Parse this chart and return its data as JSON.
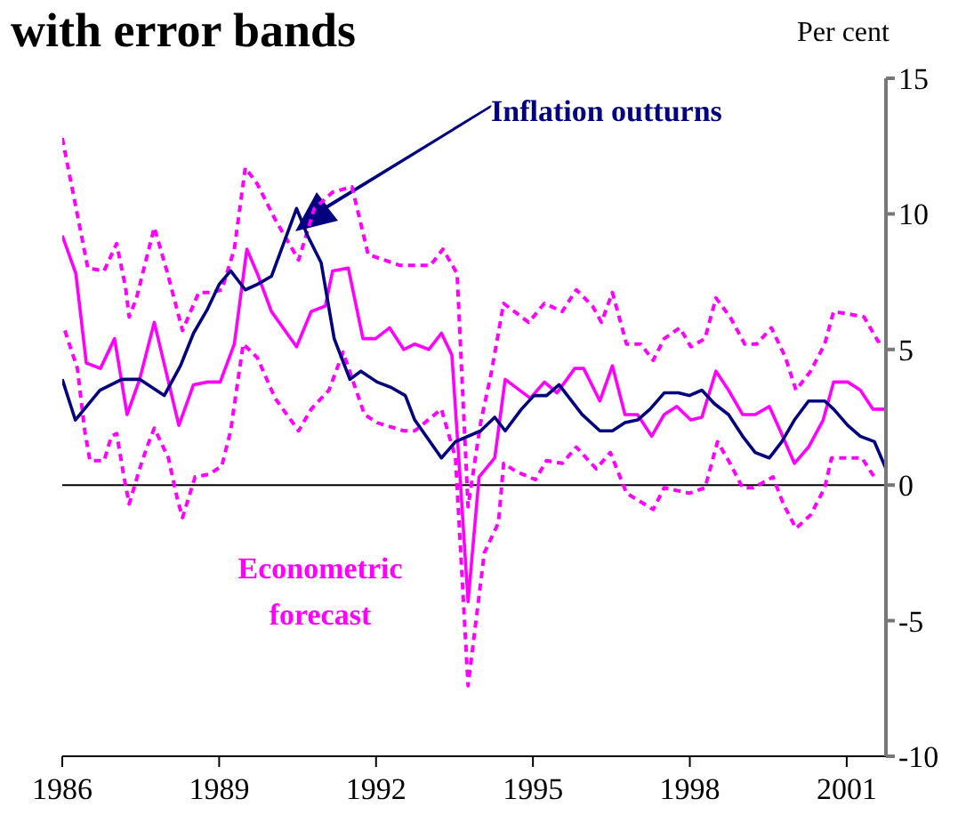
{
  "chart_data": {
    "type": "line",
    "title": "with error bands",
    "ylabel": "Per cent",
    "xlim": [
      1986,
      2001.75
    ],
    "xticks": [
      1986,
      1989,
      1992,
      1995,
      1998,
      2001
    ],
    "ylim": [
      -10,
      15
    ],
    "yticks": [
      -10,
      -5,
      0,
      5,
      10,
      15
    ],
    "grid": false,
    "legend": false,
    "marker": "none",
    "ref_lines": [
      {
        "axis": "y",
        "value": 0,
        "color": "#000000"
      }
    ],
    "series": [
      {
        "color": "#ff00ff",
        "line_style": "dashed",
        "x": [
          1986.0,
          1986.49,
          1986.8,
          1987.04,
          1987.21,
          1987.28,
          1987.42,
          1987.76,
          1988.0,
          1988.3,
          1988.61,
          1988.85,
          1989.05,
          1989.29,
          1989.5,
          1989.73,
          1990.07,
          1990.52,
          1990.82,
          1991.17,
          1991.54,
          1991.85,
          1992.46,
          1993.04,
          1993.28,
          1993.55,
          1993.76,
          1994.0,
          1994.2,
          1994.44,
          1994.92,
          1995.22,
          1995.56,
          1995.83,
          1996.14,
          1996.31,
          1996.52,
          1996.79,
          1997.06,
          1997.3,
          1997.51,
          1997.81,
          1998.02,
          1998.29,
          1998.5,
          1998.77,
          1999.05,
          1999.28,
          1999.56,
          1999.83,
          2000.03,
          2000.31,
          2000.58,
          2000.75,
          2001.06,
          2001.33,
          2001.6,
          2001.75
        ],
        "values": [
          12.8,
          8.0,
          7.9,
          8.9,
          7.3,
          6.2,
          6.9,
          9.5,
          7.9,
          5.7,
          7.1,
          7.1,
          7.2,
          8.7,
          11.7,
          11.1,
          9.8,
          8.3,
          10.2,
          10.8,
          11.0,
          8.5,
          8.1,
          8.1,
          8.7,
          7.8,
          -0.8,
          2.3,
          4.1,
          6.7,
          6.0,
          6.7,
          6.4,
          7.2,
          6.6,
          6.0,
          7.1,
          5.2,
          5.2,
          4.6,
          5.4,
          5.8,
          5.1,
          5.4,
          6.9,
          6.2,
          5.2,
          5.2,
          5.8,
          4.7,
          3.5,
          4.2,
          5.2,
          6.4,
          6.3,
          6.2,
          5.3,
          5.4
        ]
      },
      {
        "color": "#ff00ff",
        "line_style": "dashed",
        "x": [
          1986.05,
          1986.29,
          1986.43,
          1986.53,
          1986.8,
          1986.94,
          1987.04,
          1987.18,
          1987.28,
          1987.48,
          1987.62,
          1987.76,
          1988.03,
          1988.2,
          1988.3,
          1988.54,
          1988.81,
          1989.05,
          1989.22,
          1989.46,
          1989.73,
          1990.07,
          1990.52,
          1990.76,
          1991.1,
          1991.37,
          1991.78,
          1992.02,
          1992.53,
          1992.74,
          1993.25,
          1993.52,
          1993.76,
          1994.07,
          1994.34,
          1994.44,
          1994.68,
          1995.05,
          1995.26,
          1995.56,
          1995.83,
          1996.21,
          1996.48,
          1996.79,
          1997.3,
          1997.51,
          1997.99,
          1998.29,
          1998.53,
          1998.77,
          1999.01,
          1999.22,
          1999.59,
          1999.79,
          2000.03,
          2000.31,
          2000.58,
          2000.71,
          2001.02,
          2001.29,
          2001.56
        ],
        "values": [
          5.7,
          4.3,
          2.0,
          0.9,
          0.9,
          1.8,
          1.9,
          0.3,
          -0.7,
          0.6,
          1.4,
          2.1,
          1.0,
          -0.5,
          -1.2,
          0.3,
          0.4,
          0.7,
          2.0,
          5.2,
          4.7,
          3.2,
          2.0,
          2.8,
          3.5,
          4.9,
          2.6,
          2.3,
          2.0,
          2.0,
          2.8,
          1.0,
          -7.4,
          -2.5,
          -1.4,
          0.8,
          0.5,
          0.2,
          0.9,
          0.8,
          1.4,
          0.6,
          1.2,
          -0.3,
          -0.9,
          -0.1,
          -0.3,
          -0.1,
          1.6,
          0.8,
          -0.1,
          -0.1,
          0.3,
          -0.7,
          -1.6,
          -1.1,
          -0.1,
          1.0,
          1.0,
          1.0,
          0.2
        ]
      },
      {
        "name": "Econometric forecast",
        "color": "#ff00ff",
        "line_style": "solid",
        "x": [
          1986.0,
          1986.26,
          1986.46,
          1986.73,
          1987.0,
          1987.24,
          1987.48,
          1987.76,
          1988.23,
          1988.51,
          1988.78,
          1989.02,
          1989.29,
          1989.53,
          1989.73,
          1990.0,
          1990.48,
          1990.76,
          1991.03,
          1991.17,
          1991.47,
          1991.75,
          1991.99,
          1992.26,
          1992.53,
          1992.74,
          1993.01,
          1993.25,
          1993.45,
          1993.62,
          1993.76,
          1993.97,
          1994.27,
          1994.47,
          1994.95,
          1995.22,
          1995.46,
          1995.8,
          1995.97,
          1996.28,
          1996.52,
          1996.76,
          1997.0,
          1997.27,
          1997.51,
          1997.75,
          1998.02,
          1998.23,
          1998.5,
          1998.74,
          1999.01,
          1999.25,
          1999.52,
          1999.73,
          2000.0,
          2000.27,
          2000.55,
          2000.75,
          2001.02,
          2001.26,
          2001.5,
          2001.74
        ],
        "values": [
          9.2,
          7.8,
          4.5,
          4.3,
          5.4,
          2.6,
          3.9,
          6.0,
          2.2,
          3.7,
          3.8,
          3.8,
          5.2,
          8.7,
          7.8,
          6.4,
          5.1,
          6.4,
          6.6,
          7.9,
          8.0,
          5.4,
          5.4,
          5.8,
          5.0,
          5.2,
          5.0,
          5.6,
          4.8,
          -0.1,
          -4.3,
          0.3,
          1.0,
          3.9,
          3.2,
          3.8,
          3.4,
          4.3,
          4.3,
          3.1,
          4.4,
          2.6,
          2.6,
          1.8,
          2.6,
          2.9,
          2.4,
          2.5,
          4.2,
          3.5,
          2.6,
          2.6,
          2.9,
          2.0,
          0.8,
          1.4,
          2.4,
          3.8,
          3.8,
          3.5,
          2.8,
          2.8
        ]
      },
      {
        "name": "Inflation outturns",
        "color": "#000080",
        "line_style": "solid",
        "x": [
          1986.0,
          1986.25,
          1986.72,
          1987.14,
          1987.48,
          1987.95,
          1988.26,
          1988.51,
          1988.78,
          1989.0,
          1989.22,
          1989.5,
          1989.73,
          1990.0,
          1990.48,
          1990.69,
          1990.95,
          1991.2,
          1991.5,
          1991.71,
          1992.02,
          1992.29,
          1992.56,
          1992.74,
          1993.25,
          1993.52,
          1994.0,
          1994.27,
          1994.47,
          1994.78,
          1995.02,
          1995.26,
          1995.5,
          1995.94,
          1996.28,
          1996.52,
          1996.76,
          1997.0,
          1997.24,
          1997.51,
          1997.78,
          1997.99,
          1998.23,
          1998.47,
          1998.74,
          1999.01,
          1999.25,
          1999.52,
          1999.76,
          2000.0,
          2000.27,
          2000.58,
          2000.75,
          2001.02,
          2001.26,
          2001.53,
          2001.75
        ],
        "values": [
          3.9,
          2.4,
          3.5,
          3.9,
          3.9,
          3.3,
          4.4,
          5.6,
          6.5,
          7.4,
          7.9,
          7.2,
          7.4,
          7.7,
          10.2,
          9.2,
          8.2,
          5.4,
          3.9,
          4.2,
          3.8,
          3.6,
          3.3,
          2.4,
          1.0,
          1.6,
          2.0,
          2.5,
          2.0,
          2.8,
          3.3,
          3.3,
          3.7,
          2.6,
          2.0,
          2.0,
          2.3,
          2.4,
          2.8,
          3.4,
          3.4,
          3.3,
          3.5,
          3.0,
          2.6,
          1.8,
          1.2,
          1.0,
          1.6,
          2.4,
          3.1,
          3.1,
          2.8,
          2.2,
          1.8,
          1.6,
          0.6
        ]
      }
    ]
  }
}
